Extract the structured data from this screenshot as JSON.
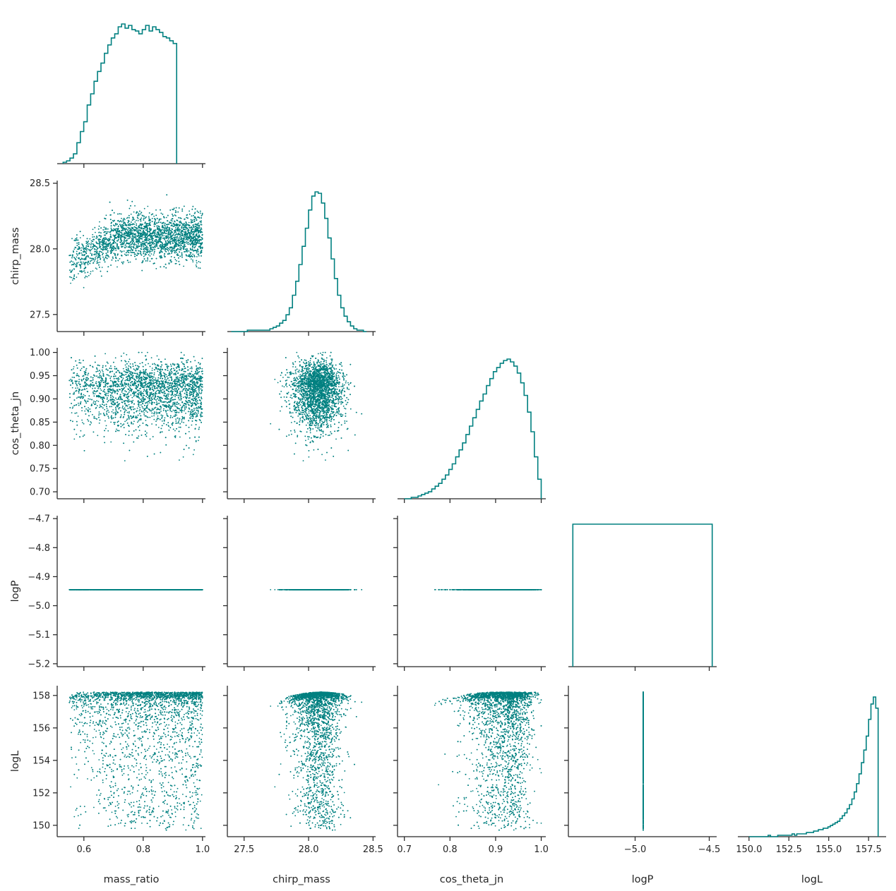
{
  "chart_data": {
    "type": "scatter",
    "color": "#008080",
    "variables": [
      {
        "name": "mass_ratio",
        "label": "mass_ratio",
        "range": [
          0.51,
          1.01
        ],
        "ticks": [
          0.6,
          0.8,
          1.0
        ],
        "tick_labels": [
          "0.6",
          "0.8",
          "1.0"
        ]
      },
      {
        "name": "chirp_mass",
        "label": "chirp_mass",
        "range": [
          27.37,
          28.52
        ],
        "ticks": [
          27.5,
          28.0,
          28.5
        ],
        "tick_labels": [
          "27.5",
          "28.0",
          "28.5"
        ]
      },
      {
        "name": "cos_theta_jn",
        "label": "cos_theta_jn",
        "range": [
          0.685,
          1.01
        ],
        "ticks": [
          0.7,
          0.75,
          0.8,
          0.85,
          0.9,
          0.95,
          1.0
        ],
        "tick_labels": [
          "0.70",
          "0.75",
          "0.80",
          "0.85",
          "0.90",
          "0.95",
          "1.00"
        ],
        "x_ticks": [
          0.7,
          0.8,
          0.9,
          1.0
        ],
        "x_tick_labels": [
          "0.7",
          "0.8",
          "0.9",
          "1.0"
        ]
      },
      {
        "name": "logP",
        "label": "logP",
        "range": [
          -5.21,
          -4.69
        ],
        "ticks": [
          -5.2,
          -5.1,
          -5.0,
          -4.9,
          -4.8,
          -4.7
        ],
        "tick_labels": [
          "−5.2",
          "−5.1",
          "−5.0",
          "−4.9",
          "−4.8",
          "−4.7"
        ],
        "x_range": [
          -5.45,
          -4.45
        ],
        "x_ticks": [
          -5.0,
          -4.5
        ],
        "x_tick_labels": [
          "−5.0",
          "−4.5"
        ]
      },
      {
        "name": "logL",
        "label": "logL",
        "range": [
          149.3,
          158.6
        ],
        "ticks": [
          150,
          152,
          154,
          156,
          158
        ],
        "tick_labels": [
          "150",
          "152",
          "154",
          "156",
          "158"
        ],
        "x_ticks": [
          150.0,
          152.5,
          155.0,
          157.5
        ],
        "x_tick_labels": [
          "150.0",
          "152.5",
          "155.0",
          "157.5"
        ]
      }
    ],
    "constant": {
      "logP": -4.945
    },
    "histograms": {
      "mass_ratio": {
        "edges_start": 0.53,
        "bin_width": 0.0116,
        "counts": [
          1,
          2,
          4,
          7,
          15,
          23,
          30,
          42,
          50,
          59,
          66,
          72,
          79,
          85,
          90,
          93,
          98,
          100,
          97,
          99,
          96,
          95,
          93,
          96,
          99,
          95,
          98,
          96,
          94,
          91,
          90,
          88,
          86
        ]
      },
      "chirp_mass": {
        "edges_start": 27.4,
        "bin_width": 0.025,
        "counts": [
          0,
          0,
          0,
          0,
          0,
          1,
          1,
          1,
          1,
          1,
          1,
          1,
          2,
          3,
          4,
          6,
          8,
          12,
          17,
          26,
          36,
          48,
          61,
          74,
          87,
          97,
          100,
          99,
          92,
          81,
          67,
          52,
          38,
          26,
          17,
          11,
          7,
          4,
          2,
          1,
          1,
          0
        ]
      },
      "cos_theta_jn": {
        "edges_start": 0.7,
        "bin_width": 0.0075,
        "counts": [
          0,
          0,
          1,
          1,
          2,
          3,
          4,
          5,
          7,
          9,
          11,
          14,
          17,
          21,
          25,
          30,
          35,
          40,
          46,
          52,
          58,
          64,
          70,
          75,
          81,
          86,
          91,
          94,
          97,
          99,
          100,
          98,
          95,
          90,
          83,
          74,
          62,
          48,
          30,
          14
        ]
      },
      "logP": {
        "flat": true,
        "x_start": -5.42,
        "x_end": -4.48
      },
      "logL": {
        "edges_start": 150.0,
        "bin_width": 0.15,
        "counts": [
          0,
          0,
          0,
          0,
          0,
          0,
          0,
          0,
          1,
          0,
          0,
          0,
          1,
          1,
          1,
          1,
          1,
          1,
          2,
          1,
          2,
          2,
          2,
          2,
          3,
          3,
          3,
          4,
          4,
          5,
          5,
          6,
          6,
          7,
          8,
          9,
          10,
          11,
          13,
          15,
          17,
          20,
          23,
          27,
          32,
          38,
          45,
          53,
          62,
          72,
          84,
          95,
          100,
          92
        ]
      }
    },
    "xlabel": "",
    "ylabel": ""
  }
}
